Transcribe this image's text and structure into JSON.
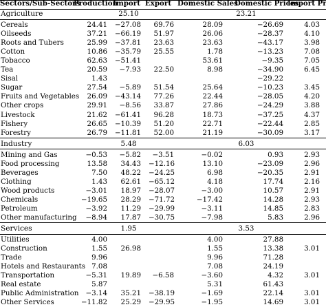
{
  "table": {
    "headers": [
      "Sectors/Sub-Sectors",
      "Production",
      "Import",
      "Export",
      "Domestic Sales",
      "Domestic Prices",
      "Import Price"
    ],
    "sections": [
      {
        "name": "Agriculture",
        "summary": [
          "",
          "25.10",
          "",
          "",
          "23.21",
          ""
        ],
        "rows": [
          [
            "Cereals",
            "24.41",
            "−27.08",
            "69.76",
            "28.09",
            "−26.69",
            "4.03"
          ],
          [
            "Oilseeds",
            "37.21",
            "−66.19",
            "51.97",
            "26.06",
            "−28.37",
            "4.10"
          ],
          [
            "Roots and Tubers",
            "25.99",
            "−37.81",
            "23.63",
            "23.63",
            "−43.17",
            "3.98"
          ],
          [
            "Cotton",
            "10.86",
            "−35.79",
            "25.55",
            "1.78",
            "−13.23",
            "7.08"
          ],
          [
            "Tobacco",
            "62.63",
            "−51.41",
            "",
            "53.61",
            "−9.35",
            "7.05"
          ],
          [
            "Tea",
            "20.59",
            "−7.93",
            "22.50",
            "8.98",
            "−34.90",
            "6.45"
          ],
          [
            "Sisal",
            "1.43",
            "",
            "",
            "",
            "−29.22",
            ""
          ],
          [
            "Sugar",
            "27.54",
            "−5.89",
            "51.54",
            "25.64",
            "−10.23",
            "3.45"
          ],
          [
            "Fruits and Vegetables",
            "26.09",
            "−43.14",
            "77.26",
            "22.44",
            "−28.05",
            "4.20"
          ],
          [
            "Other crops",
            "29.91",
            "−8.56",
            "33.87",
            "27.86",
            "−24.29",
            "3.88"
          ],
          [
            "Livestock",
            "21.62",
            "−61.41",
            "96.28",
            "18.73",
            "−37.25",
            "4.37"
          ],
          [
            "Fishery",
            "26.65",
            "−10.39",
            "51.20",
            "22.71",
            "−22.44",
            "2.85"
          ],
          [
            "Forestry",
            "26.79",
            "−11.81",
            "52.00",
            "21.19",
            "−30.09",
            "3.17"
          ]
        ]
      },
      {
        "name": "Industry",
        "summary": [
          "",
          "5.48",
          "",
          "",
          "6.03",
          ""
        ],
        "rows": [
          [
            "Mining and Gas",
            "−0.53",
            "−5.82",
            "−3.51",
            "−0.02",
            "0.93",
            "2.93"
          ],
          [
            "Food processing",
            "13.58",
            "34.43",
            "−12.16",
            "13.10",
            "−23.09",
            "2.96"
          ],
          [
            "Beverages",
            "7.50",
            "48.22",
            "−24.25",
            "6.98",
            "−20.35",
            "2.91"
          ],
          [
            "Clothing",
            "1.43",
            "62.61",
            "−65.12",
            "4.18",
            "17.74",
            "2.16"
          ],
          [
            "Wood products",
            "−3.01",
            "18.97",
            "−28.07",
            "−3.00",
            "10.57",
            "2.91"
          ],
          [
            "Chemicals",
            "−19.65",
            "28.29",
            "−71.72",
            "−17.42",
            "14.28",
            "2.93"
          ],
          [
            "Petroleum",
            "−3.92",
            "11.29",
            "−29.99",
            "−3.11",
            "14.85",
            "2.83"
          ],
          [
            "Other manufacturing",
            "−8.94",
            "17.87",
            "−30.75",
            "−7.98",
            "5.83",
            "2.96"
          ]
        ]
      },
      {
        "name": "Services",
        "summary": [
          "",
          "1.95",
          "",
          "",
          "3.53",
          ""
        ],
        "rows": [
          [
            "Utilities",
            "4.00",
            "",
            "",
            "4.00",
            "27.88",
            ""
          ],
          [
            "Construction",
            "1.55",
            "26.98",
            "",
            "1.55",
            "13.38",
            "3.01"
          ],
          [
            "Trade",
            "9.96",
            "",
            "",
            "9.96",
            "71.28",
            ""
          ],
          [
            "Hotels and Restaurants",
            "7.08",
            "",
            "",
            "7.08",
            "24.19",
            ""
          ],
          [
            "Transportation",
            "−5.31",
            "19.89",
            "−6.58",
            "−3.60",
            "4.32",
            "3.01"
          ],
          [
            "Real estate",
            "5.87",
            "",
            "",
            "5.31",
            "61.43",
            ""
          ],
          [
            "Public Administration",
            "−3.14",
            "35.21",
            "−38.19",
            "−1.69",
            "22.14",
            "3.01"
          ],
          [
            "Other Services",
            "−11.82",
            "25.29",
            "−29.95",
            "−1.95",
            "14.69",
            "3.01"
          ]
        ]
      }
    ]
  }
}
